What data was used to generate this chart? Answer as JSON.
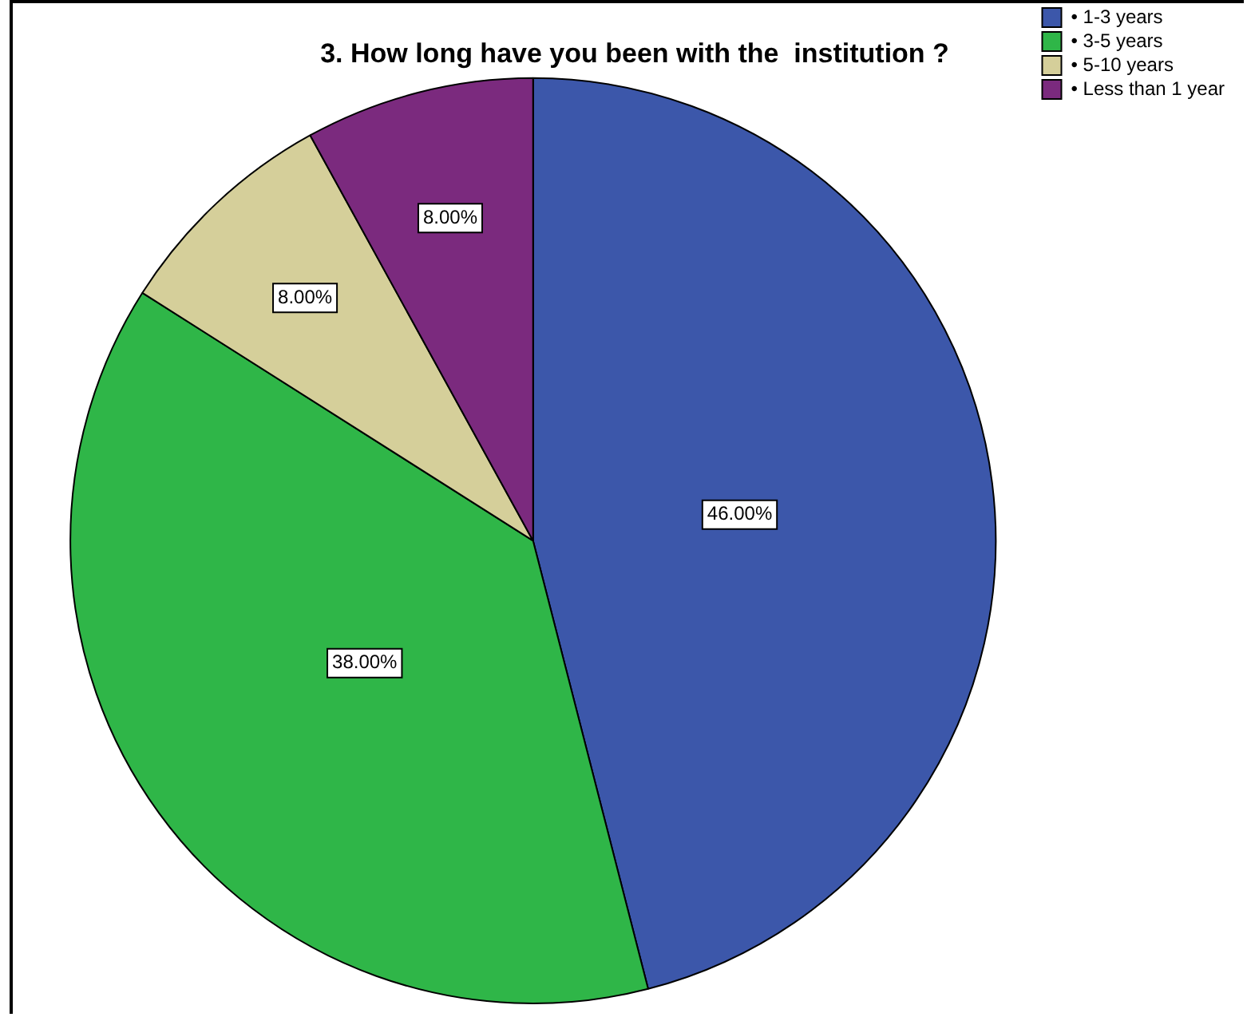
{
  "chart_data": {
    "type": "pie",
    "title": "3. How long have you been with the  institution ?",
    "categories": [
      "• 1-3 years",
      "• 3-5 years",
      "• 5-10 years",
      "• Less than 1 year"
    ],
    "values": [
      46,
      38,
      8,
      8
    ],
    "colors": [
      "#3c57aa",
      "#2fb648",
      "#d5cf9a",
      "#7b2a7e"
    ],
    "value_labels": [
      "46.00%",
      "38.00%",
      "8.00%",
      "8.00%"
    ],
    "legend": "top right"
  }
}
